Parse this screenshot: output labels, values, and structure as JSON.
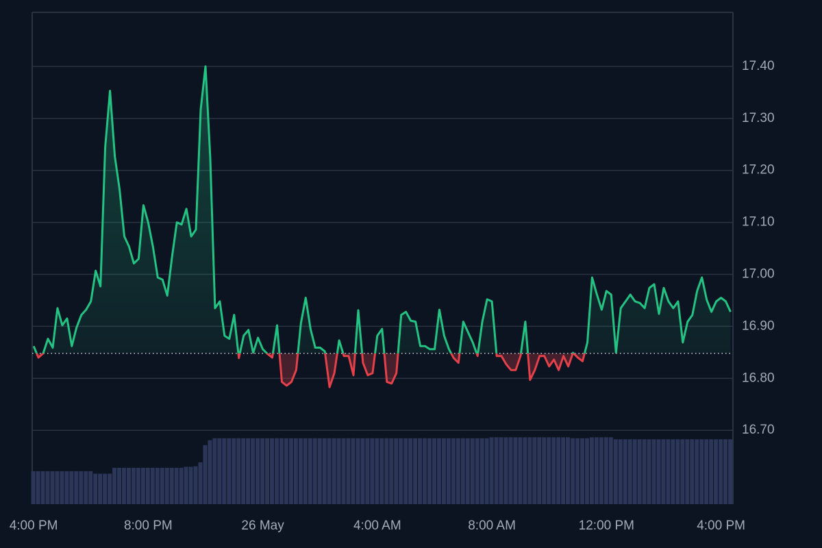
{
  "chart_data": {
    "type": "line",
    "x": [
      0,
      10,
      20,
      30,
      40,
      50,
      60,
      70,
      80,
      90,
      100,
      110,
      120,
      130,
      140,
      150,
      160,
      170,
      180,
      190,
      200,
      210,
      220,
      230,
      240,
      250,
      260,
      270,
      280,
      290,
      300,
      310,
      320,
      330,
      340,
      350,
      360,
      370,
      380,
      390,
      400,
      410,
      420,
      430,
      440,
      450,
      460,
      470,
      480,
      490,
      500,
      510,
      520,
      530,
      540,
      550,
      560,
      570,
      580,
      590,
      600,
      610,
      620,
      630,
      640,
      650,
      660,
      670,
      680,
      690,
      700,
      710,
      720,
      730,
      740,
      750,
      760,
      770,
      780,
      790,
      800,
      810,
      820,
      830,
      840,
      850,
      860,
      870,
      880,
      890,
      900,
      910,
      920,
      930,
      940,
      950,
      960,
      970,
      980,
      990,
      1000,
      1010,
      1020,
      1030,
      1040,
      1050,
      1060,
      1070,
      1080,
      1090,
      1100,
      1110,
      1120,
      1130,
      1140,
      1150,
      1160,
      1170,
      1180,
      1190,
      1200,
      1210,
      1220,
      1230,
      1240,
      1250,
      1260,
      1270,
      1280,
      1290,
      1300,
      1310,
      1320,
      1330,
      1340,
      1350,
      1360,
      1370,
      1380,
      1390,
      1400,
      1410,
      1420,
      1430,
      1440,
      1450,
      1460
    ],
    "series": [
      {
        "color": "#22c383",
        "below_color": "#e5414a",
        "values": [
          16.862,
          16.84,
          16.848,
          16.876,
          16.859,
          16.935,
          16.902,
          16.915,
          16.862,
          16.898,
          16.922,
          16.932,
          16.948,
          17.007,
          16.977,
          17.245,
          17.353,
          17.227,
          17.164,
          17.073,
          17.053,
          17.021,
          17.03,
          17.133,
          17.1,
          17.053,
          16.994,
          16.99,
          16.959,
          17.034,
          17.1,
          17.096,
          17.126,
          17.073,
          17.086,
          17.317,
          17.4,
          17.225,
          16.935,
          16.948,
          16.882,
          16.876,
          16.922,
          16.839,
          16.882,
          16.893,
          16.849,
          16.878,
          16.856,
          16.847,
          16.84,
          16.902,
          16.793,
          16.786,
          16.793,
          16.816,
          16.906,
          16.955,
          16.895,
          16.859,
          16.859,
          16.852,
          16.783,
          16.81,
          16.873,
          16.843,
          16.843,
          16.806,
          16.931,
          16.83,
          16.806,
          16.81,
          16.882,
          16.895,
          16.793,
          16.79,
          16.81,
          16.922,
          16.928,
          16.911,
          16.909,
          16.862,
          16.862,
          16.856,
          16.856,
          16.932,
          16.882,
          16.856,
          16.839,
          16.83,
          16.909,
          16.889,
          16.869,
          16.843,
          16.909,
          16.952,
          16.948,
          16.843,
          16.843,
          16.827,
          16.816,
          16.816,
          16.843,
          16.909,
          16.797,
          16.816,
          16.843,
          16.843,
          16.823,
          16.836,
          16.816,
          16.843,
          16.823,
          16.849,
          16.84,
          16.833,
          16.869,
          16.994,
          16.961,
          16.932,
          16.968,
          16.961,
          16.849,
          16.935,
          16.948,
          16.961,
          16.948,
          16.945,
          16.935,
          16.974,
          16.981,
          16.924,
          16.974,
          16.948,
          16.935,
          16.948,
          16.869,
          16.909,
          16.922,
          16.968,
          16.994,
          16.951,
          16.928,
          16.948,
          16.955,
          16.948,
          16.928
        ]
      },
      {
        "type": "bar",
        "axis": "y2",
        "color": "#2c3659",
        "values": [
          6.7,
          6.7,
          6.7,
          6.7,
          6.7,
          6.7,
          6.7,
          6.7,
          6.7,
          6.7,
          6.7,
          6.7,
          6.7,
          6.2,
          6.2,
          6.2,
          6.2,
          7.4,
          7.4,
          7.4,
          7.4,
          7.4,
          7.4,
          7.4,
          7.4,
          7.4,
          7.4,
          7.4,
          7.4,
          7.4,
          7.4,
          7.4,
          7.6,
          7.6,
          7.7,
          8.5,
          12.0,
          13.0,
          13.4,
          13.4,
          13.4,
          13.4,
          13.4,
          13.4,
          13.4,
          13.4,
          13.4,
          13.4,
          13.4,
          13.4,
          13.4,
          13.4,
          13.4,
          13.4,
          13.4,
          13.4,
          13.4,
          13.4,
          13.4,
          13.4,
          13.4,
          13.4,
          13.4,
          13.4,
          13.4,
          13.4,
          13.4,
          13.4,
          13.4,
          13.4,
          13.4,
          13.4,
          13.4,
          13.4,
          13.4,
          13.4,
          13.4,
          13.4,
          13.4,
          13.4,
          13.4,
          13.4,
          13.4,
          13.4,
          13.4,
          13.4,
          13.4,
          13.4,
          13.4,
          13.4,
          13.4,
          13.4,
          13.4,
          13.4,
          13.4,
          13.4,
          13.6,
          13.6,
          13.6,
          13.6,
          13.6,
          13.6,
          13.6,
          13.6,
          13.6,
          13.6,
          13.6,
          13.6,
          13.6,
          13.6,
          13.6,
          13.6,
          13.6,
          13.4,
          13.4,
          13.4,
          13.4,
          13.6,
          13.6,
          13.6,
          13.6,
          13.6,
          13.2,
          13.2,
          13.2,
          13.2,
          13.2,
          13.2,
          13.2,
          13.2,
          13.2,
          13.2,
          13.2,
          13.2,
          13.2,
          13.2,
          13.2,
          13.2,
          13.2,
          13.2,
          13.2,
          13.2,
          13.2,
          13.2,
          13.2,
          13.2,
          13.2
        ]
      }
    ],
    "baseline": 16.848,
    "xlim": [
      -3,
      1465
    ],
    "xticks": [
      {
        "value": 0,
        "label": "4:00 PM"
      },
      {
        "value": 240,
        "label": "8:00 PM"
      },
      {
        "value": 480,
        "label": "26 May"
      },
      {
        "value": 720,
        "label": "4:00 AM"
      },
      {
        "value": 960,
        "label": "8:00 AM"
      },
      {
        "value": 1200,
        "label": "12:00 PM"
      },
      {
        "value": 1440,
        "label": "4:00 PM"
      }
    ],
    "ylim": [
      16.558,
      17.504
    ],
    "yticks": [
      {
        "value": 16.7,
        "label": "16.70"
      },
      {
        "value": 16.8,
        "label": "16.80"
      },
      {
        "value": 16.9,
        "label": "16.90"
      },
      {
        "value": 17.0,
        "label": "17.00"
      },
      {
        "value": 17.1,
        "label": "17.10"
      },
      {
        "value": 17.2,
        "label": "17.20"
      },
      {
        "value": 17.3,
        "label": "17.30"
      },
      {
        "value": 17.4,
        "label": "17.40"
      }
    ],
    "y2lim": [
      0,
      100
    ],
    "grid": true
  }
}
